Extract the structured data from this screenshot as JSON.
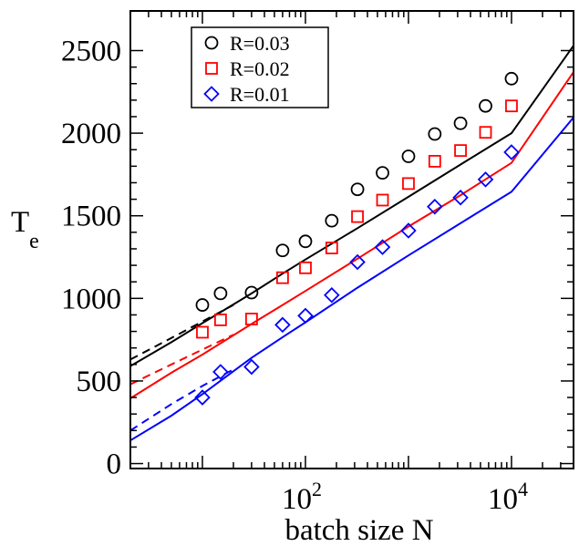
{
  "chart_data": {
    "type": "scatter",
    "title": "",
    "xlabel": "batch size N",
    "ylabel": "T",
    "ylabel_subscript": "e",
    "xscale": "log",
    "xlim": [
      2,
      40000
    ],
    "ylim": [
      -30,
      2740
    ],
    "grid": false,
    "legend_position": "top-left",
    "x_tick_labels": [
      {
        "x": 100,
        "base": "10",
        "exp": "2"
      },
      {
        "x": 10000,
        "base": "10",
        "exp": "4"
      }
    ],
    "y_ticks": [
      0,
      500,
      1000,
      1500,
      2000,
      2500
    ],
    "y_tick_labels": [
      "0",
      "500",
      "1000",
      "1500",
      "2000",
      "2500"
    ],
    "series": [
      {
        "name": "R=0.03",
        "color": "#000000",
        "marker": "circle",
        "points": [
          [
            10,
            960
          ],
          [
            15,
            1030
          ],
          [
            30,
            1035
          ],
          [
            60,
            1290
          ],
          [
            100,
            1345
          ],
          [
            180,
            1470
          ],
          [
            320,
            1660
          ],
          [
            560,
            1760
          ],
          [
            1000,
            1860
          ],
          [
            1800,
            1995
          ],
          [
            3200,
            2060
          ],
          [
            5600,
            2165
          ],
          [
            10000,
            2330
          ]
        ],
        "fit_solid": [
          [
            2,
            590
          ],
          [
            5,
            735
          ],
          [
            10,
            850
          ],
          [
            30,
            1030
          ],
          [
            60,
            1150
          ],
          [
            100,
            1235
          ],
          [
            320,
            1425
          ],
          [
            1000,
            1615
          ],
          [
            3200,
            1810
          ],
          [
            10000,
            2000
          ],
          [
            40000,
            2530
          ]
        ],
        "fit_dashed": [
          [
            2,
            630
          ],
          [
            5,
            760
          ],
          [
            10,
            860
          ],
          [
            20,
            960
          ]
        ]
      },
      {
        "name": "R=0.02",
        "color": "#ff0000",
        "marker": "square",
        "points": [
          [
            10,
            795
          ],
          [
            15,
            870
          ],
          [
            30,
            875
          ],
          [
            60,
            1125
          ],
          [
            100,
            1185
          ],
          [
            180,
            1305
          ],
          [
            320,
            1495
          ],
          [
            560,
            1595
          ],
          [
            1000,
            1695
          ],
          [
            1800,
            1830
          ],
          [
            3200,
            1895
          ],
          [
            5600,
            2005
          ],
          [
            10000,
            2165
          ]
        ],
        "fit_solid": [
          [
            2,
            395
          ],
          [
            5,
            550
          ],
          [
            10,
            660
          ],
          [
            30,
            845
          ],
          [
            60,
            960
          ],
          [
            100,
            1045
          ],
          [
            320,
            1240
          ],
          [
            1000,
            1435
          ],
          [
            3200,
            1625
          ],
          [
            10000,
            1820
          ],
          [
            40000,
            2370
          ]
        ],
        "fit_dashed": [
          [
            2,
            480
          ],
          [
            5,
            600
          ],
          [
            10,
            690
          ],
          [
            20,
            780
          ]
        ]
      },
      {
        "name": "R=0.01",
        "color": "#0000ff",
        "marker": "diamond",
        "points": [
          [
            10,
            400
          ],
          [
            15,
            555
          ],
          [
            30,
            585
          ],
          [
            60,
            840
          ],
          [
            100,
            895
          ],
          [
            180,
            1020
          ],
          [
            320,
            1220
          ],
          [
            560,
            1310
          ],
          [
            1000,
            1410
          ],
          [
            1800,
            1555
          ],
          [
            3200,
            1610
          ],
          [
            5600,
            1720
          ],
          [
            10000,
            1885
          ]
        ],
        "fit_solid": [
          [
            2,
            140
          ],
          [
            5,
            290
          ],
          [
            10,
            420
          ],
          [
            30,
            640
          ],
          [
            60,
            765
          ],
          [
            100,
            855
          ],
          [
            320,
            1065
          ],
          [
            1000,
            1260
          ],
          [
            3200,
            1455
          ],
          [
            10000,
            1645
          ],
          [
            40000,
            2095
          ]
        ],
        "fit_dashed": [
          [
            2,
            200
          ],
          [
            5,
            360
          ],
          [
            10,
            470
          ],
          [
            20,
            570
          ]
        ]
      }
    ]
  }
}
